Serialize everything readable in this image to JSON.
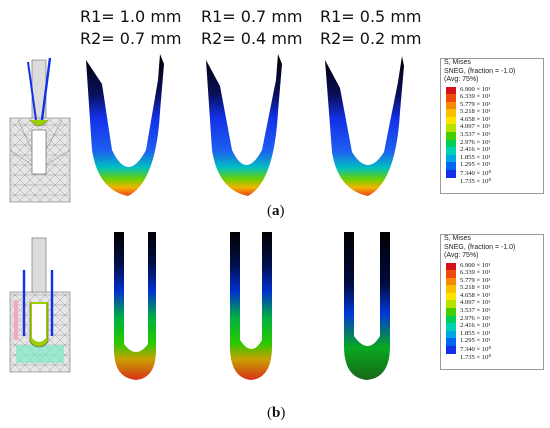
{
  "headers": [
    {
      "r1": "R1= 1.0 mm",
      "r2": "R2= 0.7 mm"
    },
    {
      "r1": "R1= 0.7 mm",
      "r2": "R2= 0.4 mm"
    },
    {
      "r1": "R1= 0.5 mm",
      "r2": "R2= 0.2 mm"
    }
  ],
  "panels": [
    {
      "open": "(",
      "letter": "a",
      "close": ")"
    },
    {
      "open": "(",
      "letter": "b",
      "close": ")"
    }
  ],
  "legend": {
    "line1": "S, Mises",
    "line2": "SNEG, (fraction = -1.0)",
    "line3": "(Avg: 75%)",
    "values": [
      "6.900 × 10¹",
      "6.339 × 10¹",
      "5.779 × 10¹",
      "5.218 × 10¹",
      "4.658 × 10¹",
      "4.097 × 10¹",
      "3.537 × 10¹",
      "2.976 × 10¹",
      "2.416 × 10¹",
      "1.855 × 10¹",
      "1.295 × 10¹",
      "7.340 × 10⁰",
      "1.735 × 10⁰"
    ],
    "colors": [
      "#d8101e",
      "#f04a10",
      "#f88a08",
      "#fcbc00",
      "#ffe400",
      "#b8e000",
      "#44d000",
      "#00d05a",
      "#00d0b4",
      "#00a6e6",
      "#0066ee",
      "#1230e8"
    ]
  }
}
